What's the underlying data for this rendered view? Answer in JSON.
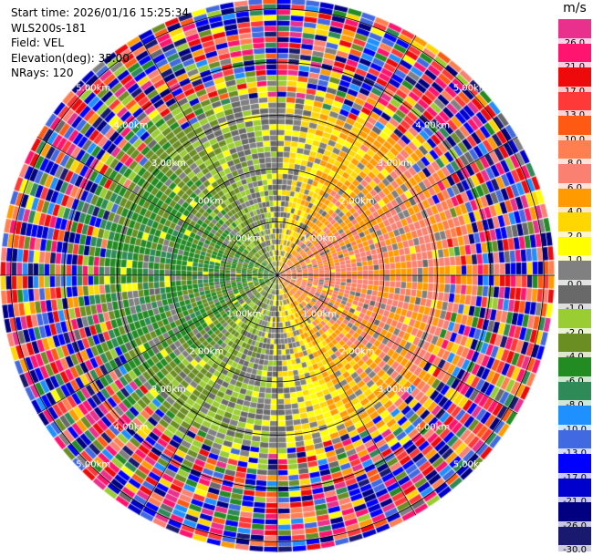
{
  "header": {
    "start_time": "Start time: 2026/01/16 15:25:34",
    "device": "WLS200s-181",
    "field": "Field: VEL",
    "elevation": "Elevation(deg): 35.00",
    "nrays": "NRays: 120"
  },
  "chart_data": {
    "type": "heatmap",
    "plot": "polar-ppi",
    "field": "VEL",
    "elevation_deg": 35.0,
    "nrays": 120,
    "range_rings_km": [
      "1.00km",
      "2.00km",
      "3.00km",
      "4.00km",
      "5.00km"
    ],
    "unit": "m/s",
    "colorbar": [
      {
        "label": "26.0",
        "color": "#e8308c"
      },
      {
        "label": "21.0",
        "color": "#ff1470"
      },
      {
        "label": "17.0",
        "color": "#ee0a0a"
      },
      {
        "label": "13.0",
        "color": "#ff3838"
      },
      {
        "label": "10.0",
        "color": "#ff5a14"
      },
      {
        "label": "8.0",
        "color": "#ff7f50"
      },
      {
        "label": "6.0",
        "color": "#fa8072"
      },
      {
        "label": "4.0",
        "color": "#ff9a00"
      },
      {
        "label": "2.0",
        "color": "#ffd700"
      },
      {
        "label": "1.0",
        "color": "#ffff00"
      },
      {
        "label": "0.0",
        "color": "#808080"
      },
      {
        "label": "-1.0",
        "color": "#696969"
      },
      {
        "label": "-2.0",
        "color": "#9acd32"
      },
      {
        "label": "-4.0",
        "color": "#6b8e23"
      },
      {
        "label": "-6.0",
        "color": "#228b22"
      },
      {
        "label": "-8.0",
        "color": "#2e8b57"
      },
      {
        "label": "-10.0",
        "color": "#1e90ff"
      },
      {
        "label": "-13.0",
        "color": "#4169e1"
      },
      {
        "label": "-17.0",
        "color": "#0000ff"
      },
      {
        "label": "-21.0",
        "color": "#0000cd"
      },
      {
        "label": "-26.0",
        "color": "#000080"
      },
      {
        "label": "-30.0",
        "color": "#191970"
      }
    ],
    "grid": true
  }
}
